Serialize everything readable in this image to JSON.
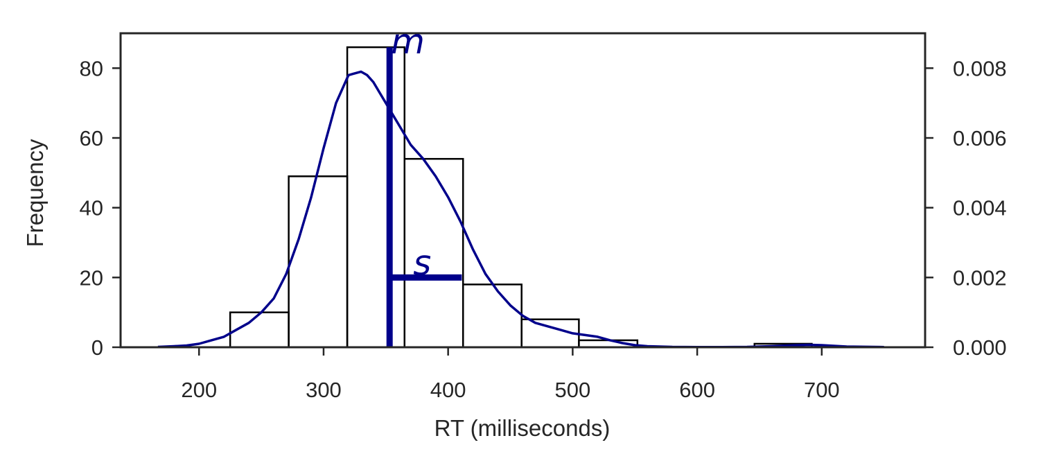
{
  "chart_data": {
    "type": "bar",
    "title": "",
    "xlabel": "RT (milliseconds)",
    "ylabel": "Frequency",
    "xlim": [
      137,
      783
    ],
    "ylim": [
      0,
      90
    ],
    "y2lim": [
      0,
      0.009
    ],
    "xticks": [
      200,
      300,
      400,
      500,
      600,
      700
    ],
    "yticks": [
      0,
      20,
      40,
      60,
      80
    ],
    "y2ticks": [
      0.0,
      0.002,
      0.004,
      0.006,
      0.008
    ],
    "y2tick_labels": [
      "0.000",
      "0.002",
      "0.004",
      "0.006",
      "0.008"
    ],
    "histogram": {
      "bin_edges": [
        225,
        272,
        319,
        365,
        412,
        459,
        505,
        552,
        599,
        646,
        692
      ],
      "counts": [
        10,
        49,
        86,
        54,
        18,
        8,
        2,
        0,
        0,
        1
      ]
    },
    "kde": {
      "x": [
        167,
        180,
        190,
        200,
        210,
        220,
        230,
        240,
        250,
        260,
        270,
        280,
        290,
        300,
        310,
        320,
        330,
        335,
        340,
        345,
        350,
        355,
        360,
        365,
        370,
        380,
        390,
        400,
        410,
        420,
        430,
        440,
        450,
        460,
        470,
        480,
        490,
        500,
        510,
        520,
        530,
        540,
        550,
        560,
        580,
        600,
        620,
        640,
        660,
        680,
        690,
        700,
        720,
        750
      ],
      "y": [
        1e-05,
        3e-05,
        5e-05,
        0.0001,
        0.0002,
        0.0003,
        0.0005,
        0.0007,
        0.001,
        0.0014,
        0.0021,
        0.0031,
        0.0043,
        0.0057,
        0.007,
        0.0078,
        0.0079,
        0.0078,
        0.0076,
        0.0073,
        0.007,
        0.0067,
        0.0064,
        0.0061,
        0.0058,
        0.0054,
        0.0049,
        0.0043,
        0.0036,
        0.0028,
        0.0021,
        0.0016,
        0.0012,
        0.0009,
        0.0007,
        0.0006,
        0.0005,
        0.0004,
        0.00035,
        0.0003,
        0.0002,
        0.00012,
        6e-05,
        3e-05,
        1e-05,
        5e-06,
        5e-06,
        1e-05,
        3e-05,
        6e-05,
        7e-05,
        6e-05,
        2e-05,
        5e-06
      ]
    },
    "mean_marker": {
      "x": 353,
      "label": "m"
    },
    "sd_marker": {
      "x_from": 353,
      "x_to": 411,
      "y": 20,
      "label": "s"
    },
    "colors": {
      "kde": "#00008b",
      "bars": "#000000",
      "axes": "#262626"
    },
    "grid": false,
    "legend": "none"
  }
}
